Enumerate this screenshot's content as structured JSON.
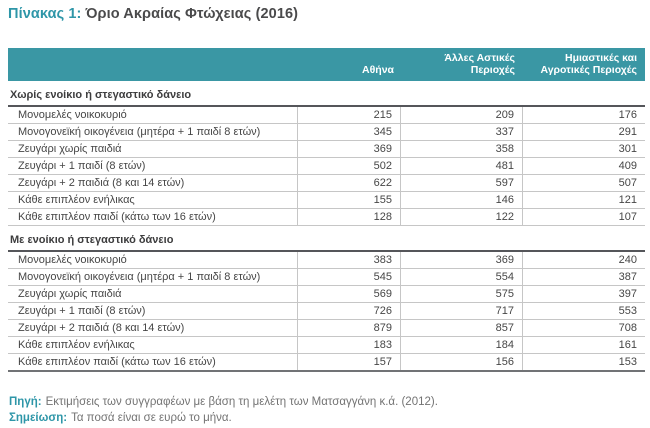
{
  "title": {
    "prefix": "Πίνακας 1:",
    "text": "Όριο Ακραίας Φτώχειας (2016)"
  },
  "table": {
    "columns": [
      "Αθήνα",
      "Άλλες Αστικές Περιοχές",
      "Ημιαστικές και Αγροτικές Περιοχές"
    ],
    "sections": [
      {
        "header": "Χωρίς ενοίκιο ή στεγαστικό δάνειο",
        "rows": [
          {
            "label": "Μονομελές νοικοκυριό",
            "values": [
              215,
              209,
              176
            ]
          },
          {
            "label": "Μονογονεϊκή οικογένεια (μητέρα + 1 παιδί 8 ετών)",
            "values": [
              345,
              337,
              291
            ]
          },
          {
            "label": "Ζευγάρι χωρίς παιδιά",
            "values": [
              369,
              358,
              301
            ]
          },
          {
            "label": "Ζευγάρι + 1 παιδί (8 ετών)",
            "values": [
              502,
              481,
              409
            ]
          },
          {
            "label": "Ζευγάρι + 2 παιδιά (8 και 14 ετών)",
            "values": [
              622,
              597,
              507
            ]
          },
          {
            "label": "Κάθε επιπλέον ενήλικας",
            "values": [
              155,
              146,
              121
            ]
          },
          {
            "label": "Κάθε επιπλέον παιδί (κάτω των 16 ετών)",
            "values": [
              128,
              122,
              107
            ]
          }
        ]
      },
      {
        "header": "Με ενοίκιο ή στεγαστικό δάνειο",
        "rows": [
          {
            "label": "Μονομελές νοικοκυριό",
            "values": [
              383,
              369,
              240
            ]
          },
          {
            "label": "Μονογονεϊκή οικογένεια (μητέρα + 1 παιδί 8 ετών)",
            "values": [
              545,
              554,
              387
            ]
          },
          {
            "label": "Ζευγάρι χωρίς παιδιά",
            "values": [
              569,
              575,
              397
            ]
          },
          {
            "label": "Ζευγάρι + 1 παιδί (8 ετών)",
            "values": [
              726,
              717,
              553
            ]
          },
          {
            "label": "Ζευγάρι + 2 παιδιά (8 και 14 ετών)",
            "values": [
              879,
              857,
              708
            ]
          },
          {
            "label": "Κάθε επιπλέον ενήλικας",
            "values": [
              183,
              184,
              161
            ]
          },
          {
            "label": "Κάθε επιπλέον παιδί (κάτω των 16 ετών)",
            "values": [
              157,
              156,
              153
            ]
          }
        ]
      }
    ]
  },
  "notes": [
    {
      "label": "Πηγή:",
      "text": "Εκτιμήσεις των συγγραφέων με βάση τη μελέτη των Ματσαγγάνη κ.ά. (2012)."
    },
    {
      "label": "Σημείωση:",
      "text": "Τα ποσά είναι σε ευρώ το μήνα."
    }
  ],
  "colors": {
    "accent": "#2e96a8",
    "header_bg": "#3a97a4",
    "body_text": "#464646",
    "row_border": "#c6c6c6",
    "section_border": "#55565a"
  }
}
